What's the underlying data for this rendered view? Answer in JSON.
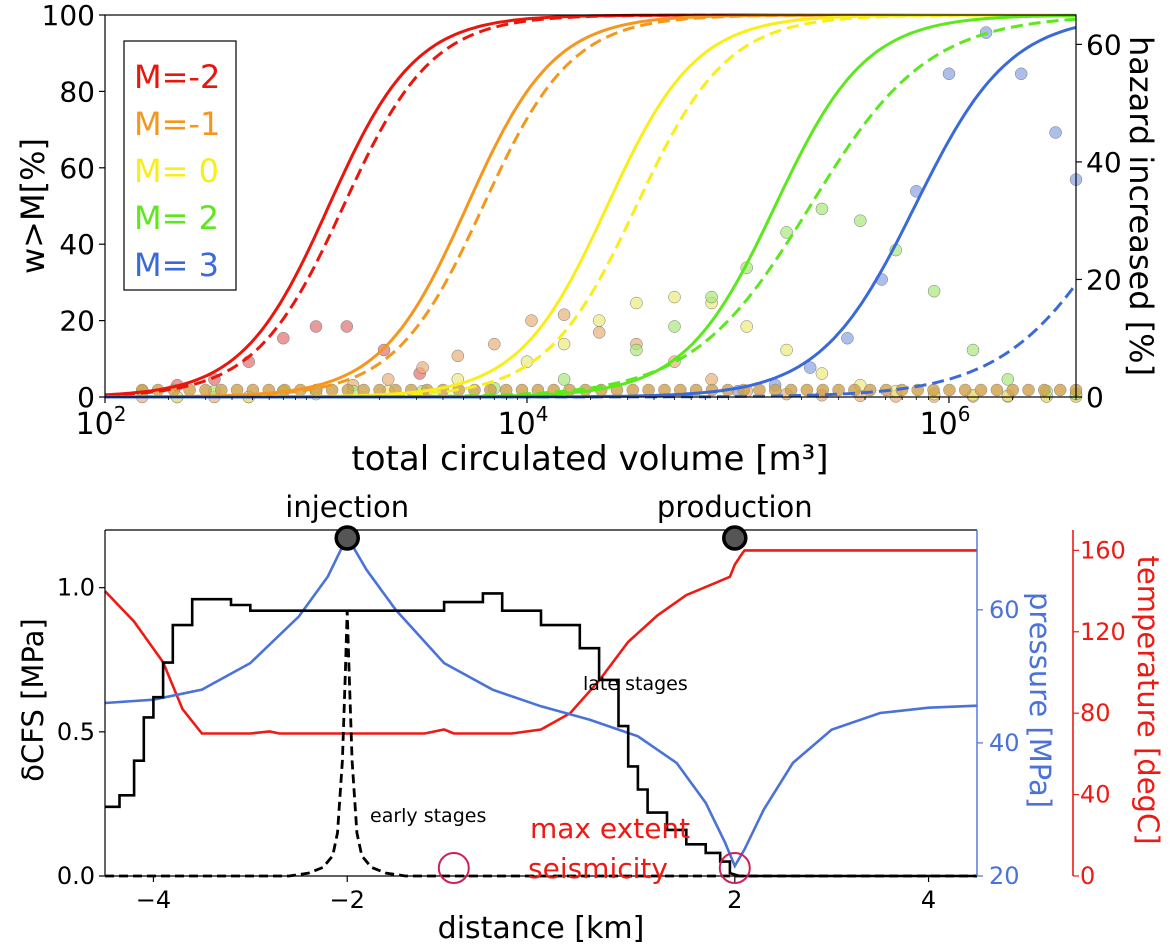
{
  "chart_data": [
    {
      "type": "line",
      "xlabel": "total circulated volume [m³]",
      "ylabel": "w>M[%]",
      "y2label": "hazard increased [%]",
      "xscale": "log",
      "xlim": [
        100,
        4000000
      ],
      "ylim": [
        0,
        100
      ],
      "y2lim": [
        0,
        65
      ],
      "xticks": [
        {
          "v": 100,
          "base": "10",
          "exp": "2"
        },
        {
          "v": 10000,
          "base": "10",
          "exp": "4"
        },
        {
          "v": 1000000,
          "base": "10",
          "exp": "6"
        }
      ],
      "yticks": [
        0,
        20,
        40,
        60,
        80,
        100
      ],
      "y2ticks": [
        0,
        20,
        40,
        60
      ],
      "legend_position": "upper-left",
      "legend": [
        "M=-2",
        "M=-1",
        "M= 0",
        "M= 2",
        "M= 3"
      ],
      "series": [
        {
          "name": "M=-2",
          "color": "#e8160c",
          "solid": {
            "x50": 1150,
            "w": 0.82
          },
          "dashed": {
            "x50": 1350,
            "w": 0.84
          },
          "scatter": {
            "color": "#e07070",
            "x": [
              150,
              220,
              330,
              480,
              700,
              1000,
              1400,
              2100,
              3100
            ],
            "y": [
              1,
              2,
              3,
              6,
              10,
              12,
              12,
              8,
              4
            ]
          }
        },
        {
          "name": "M=-1",
          "color": "#f5961e",
          "solid": {
            "x50": 5200,
            "w": 0.82
          },
          "dashed": {
            "x50": 6200,
            "w": 0.84
          },
          "scatter": {
            "color": "#e8b07a",
            "x": [
              150,
              220,
              330,
              480,
              700,
              1000,
              1500,
              2200,
              3200,
              4700,
              7000,
              10500,
              15000,
              22000,
              33000,
              50000,
              75000,
              110000,
              170000,
              250000,
              380000,
              560000,
              850000,
              1300000,
              1900000,
              2900000,
              4000000
            ],
            "y": [
              0,
              0,
              0,
              0,
              1,
              1,
              2,
              3,
              5,
              7,
              9,
              13,
              14,
              11,
              9,
              6,
              3,
              1,
              0.5,
              0.3,
              0.2,
              0.1,
              0.1,
              0.1,
              0.1,
              0.1,
              0.1
            ]
          }
        },
        {
          "name": "M= 0",
          "color": "#f8ee1a",
          "solid": {
            "x50": 24000,
            "w": 0.84
          },
          "dashed": {
            "x50": 33000,
            "w": 0.86
          },
          "scatter": {
            "color": "#ecea7a",
            "x": [
              220,
              480,
              1000,
              2200,
              4700,
              10000,
              15000,
              22000,
              33000,
              50000,
              75000,
              110000,
              170000,
              250000,
              380000,
              560000,
              850000,
              1300000,
              1900000,
              2900000,
              4000000
            ],
            "y": [
              0,
              0,
              0.5,
              1,
              3,
              6,
              9,
              13,
              16,
              17,
              16,
              12,
              8,
              4,
              2,
              1,
              0.5,
              0.3,
              0.2,
              0.1,
              0.1
            ]
          }
        },
        {
          "name": "M= 2",
          "color": "#5de81e",
          "solid": {
            "x50": 150000,
            "w": 0.86
          },
          "dashed": {
            "x50": 220000,
            "w": 1.12
          },
          "scatter": {
            "color": "#a8e87a",
            "x": [
              150,
              330,
              700,
              1500,
              3200,
              7000,
              15000,
              33000,
              50000,
              75000,
              110000,
              170000,
              250000,
              380000,
              560000,
              850000,
              1300000,
              1900000,
              2900000,
              4000000
            ],
            "y": [
              1,
              1,
              1,
              1,
              1,
              1.5,
              3,
              8,
              12,
              17,
              22,
              28,
              32,
              30,
              25,
              18,
              8,
              3,
              1,
              0.5
            ]
          }
        },
        {
          "name": "M= 3",
          "color": "#3a6ad8",
          "solid": {
            "x50": 690000,
            "w": 0.9
          },
          "dashed": {
            "x50": 7000000,
            "w": 1.12
          },
          "scatter": {
            "color": "#8aa2e2",
            "x": [
              100000,
              150000,
              220000,
              330000,
              480000,
              700000,
              1000000,
              1500000,
              2200000,
              3200000,
              4000000
            ],
            "y": [
              1,
              2,
              5,
              10,
              20,
              35,
              55,
              62,
              55,
              45,
              37
            ]
          }
        }
      ],
      "bottom_markers": {
        "color": "#cfa04a",
        "from": 150,
        "to": 4000000,
        "count": 60
      }
    },
    {
      "type": "line",
      "xlabel": "distance [km]",
      "ylabel": "δCFS [MPa]",
      "y2label": "pressure [MPa]",
      "y3label": "temperature [degC]",
      "xlim": [
        -4.5,
        4.5
      ],
      "ylim": [
        0,
        1.2
      ],
      "y2lim": [
        20,
        72
      ],
      "y3lim": [
        0,
        170
      ],
      "xticks": [
        -4,
        -2,
        2,
        4
      ],
      "yticks": [
        "0.0",
        "0.5",
        "1.0"
      ],
      "y2ticks": [
        20,
        40,
        60
      ],
      "y3ticks": [
        0,
        40,
        80,
        120,
        160
      ],
      "colors": {
        "cfs": "#000000",
        "pressure": "#4a72d8",
        "temperature": "#ee1a14",
        "marker": "#555555",
        "circle": "#d0205a"
      },
      "wells": [
        {
          "label": "injection",
          "x": -2
        },
        {
          "label": "production",
          "x": 2
        }
      ],
      "annotations": {
        "late": "late stages",
        "early": "early stages",
        "extent_line1": "max extent",
        "extent_line2": "seismicity"
      },
      "extent_circles": [
        -0.9,
        2
      ],
      "cfs_late": [
        [
          -4.5,
          0.24
        ],
        [
          -4.35,
          0.24
        ],
        [
          -4.35,
          0.28
        ],
        [
          -4.2,
          0.28
        ],
        [
          -4.2,
          0.4
        ],
        [
          -4.1,
          0.4
        ],
        [
          -4.1,
          0.55
        ],
        [
          -4.0,
          0.55
        ],
        [
          -4.0,
          0.62
        ],
        [
          -3.9,
          0.62
        ],
        [
          -3.9,
          0.74
        ],
        [
          -3.8,
          0.74
        ],
        [
          -3.8,
          0.87
        ],
        [
          -3.6,
          0.87
        ],
        [
          -3.6,
          0.96
        ],
        [
          -3.2,
          0.96
        ],
        [
          -3.2,
          0.94
        ],
        [
          -3.0,
          0.94
        ],
        [
          -3.0,
          0.92
        ],
        [
          -1.0,
          0.92
        ],
        [
          -1.0,
          0.95
        ],
        [
          -0.6,
          0.95
        ],
        [
          -0.6,
          0.98
        ],
        [
          -0.4,
          0.98
        ],
        [
          -0.4,
          0.92
        ],
        [
          0.0,
          0.92
        ],
        [
          0.0,
          0.87
        ],
        [
          0.4,
          0.87
        ],
        [
          0.4,
          0.79
        ],
        [
          0.6,
          0.79
        ],
        [
          0.6,
          0.68
        ],
        [
          0.8,
          0.68
        ],
        [
          0.8,
          0.52
        ],
        [
          0.9,
          0.52
        ],
        [
          0.9,
          0.38
        ],
        [
          1.0,
          0.38
        ],
        [
          1.0,
          0.3
        ],
        [
          1.1,
          0.3
        ],
        [
          1.1,
          0.22
        ],
        [
          1.3,
          0.22
        ],
        [
          1.3,
          0.16
        ],
        [
          1.5,
          0.16
        ],
        [
          1.5,
          0.11
        ],
        [
          1.7,
          0.11
        ],
        [
          1.7,
          0.08
        ],
        [
          1.85,
          0.08
        ],
        [
          1.85,
          0.05
        ],
        [
          1.95,
          0.05
        ],
        [
          1.95,
          0.01
        ],
        [
          2.05,
          0.0
        ],
        [
          4.5,
          0.0
        ]
      ],
      "cfs_early": [
        [
          -4.5,
          0.0
        ],
        [
          -2.6,
          0.0
        ],
        [
          -2.4,
          0.01
        ],
        [
          -2.25,
          0.03
        ],
        [
          -2.15,
          0.07
        ],
        [
          -2.1,
          0.15
        ],
        [
          -2.05,
          0.4
        ],
        [
          -2.02,
          0.7
        ],
        [
          -2.0,
          0.92
        ],
        [
          -1.98,
          0.7
        ],
        [
          -1.95,
          0.4
        ],
        [
          -1.9,
          0.15
        ],
        [
          -1.85,
          0.07
        ],
        [
          -1.75,
          0.03
        ],
        [
          -1.6,
          0.01
        ],
        [
          -1.4,
          0.0
        ],
        [
          4.5,
          0.0
        ]
      ],
      "pressure": [
        [
          -4.5,
          46
        ],
        [
          -4.0,
          46.5
        ],
        [
          -3.5,
          48
        ],
        [
          -3.0,
          52
        ],
        [
          -2.5,
          59
        ],
        [
          -2.2,
          65
        ],
        [
          -2.0,
          71
        ],
        [
          -1.8,
          66
        ],
        [
          -1.5,
          60
        ],
        [
          -1.0,
          52
        ],
        [
          -0.5,
          48
        ],
        [
          0.0,
          45.5
        ],
        [
          0.5,
          43.5
        ],
        [
          1.0,
          41
        ],
        [
          1.4,
          37
        ],
        [
          1.7,
          31
        ],
        [
          1.9,
          25
        ],
        [
          2.0,
          21.5
        ],
        [
          2.1,
          24
        ],
        [
          2.3,
          30
        ],
        [
          2.6,
          37
        ],
        [
          3.0,
          42
        ],
        [
          3.5,
          44.5
        ],
        [
          4.0,
          45.3
        ],
        [
          4.5,
          45.6
        ]
      ],
      "temperature": [
        [
          -4.5,
          140
        ],
        [
          -4.2,
          125
        ],
        [
          -3.9,
          105
        ],
        [
          -3.7,
          82
        ],
        [
          -3.5,
          70
        ],
        [
          -3.0,
          70
        ],
        [
          -2.8,
          71
        ],
        [
          -2.7,
          70
        ],
        [
          -1.2,
          70
        ],
        [
          -1.0,
          72
        ],
        [
          -0.9,
          70
        ],
        [
          -0.3,
          70
        ],
        [
          0.0,
          72
        ],
        [
          0.3,
          80
        ],
        [
          0.6,
          96
        ],
        [
          0.9,
          115
        ],
        [
          1.2,
          128
        ],
        [
          1.5,
          138
        ],
        [
          1.8,
          144
        ],
        [
          1.95,
          147
        ],
        [
          2.0,
          153
        ],
        [
          2.07,
          158
        ],
        [
          2.1,
          160
        ],
        [
          4.5,
          160
        ]
      ]
    }
  ]
}
